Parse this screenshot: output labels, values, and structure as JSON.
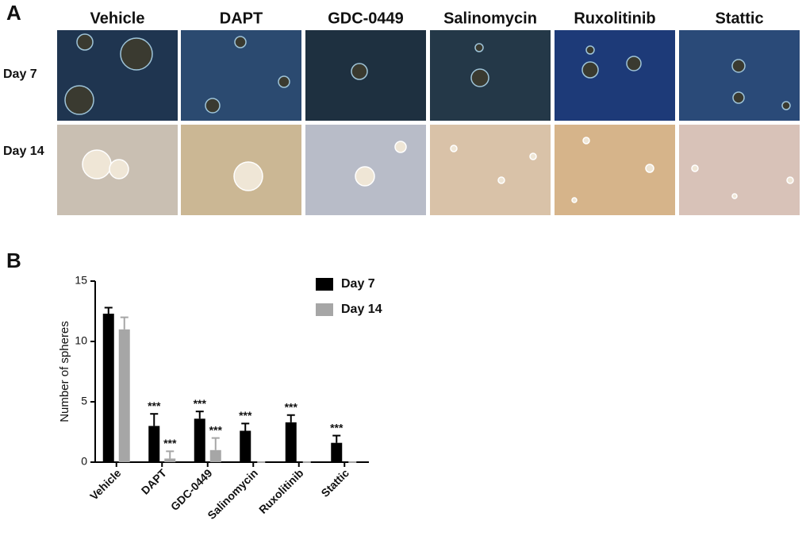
{
  "panel_a": {
    "label": "A",
    "columns": [
      "Vehicle",
      "DAPT",
      "GDC-0449",
      "Salinomycin",
      "Ruxolitinib",
      "Stattic"
    ],
    "rows": [
      "Day 7",
      "Day 14"
    ]
  },
  "chart_data": {
    "type": "bar",
    "panel_label": "B",
    "y_label": "Number of spheres",
    "categories": [
      "Vehicle",
      "DAPT",
      "GDC-0449",
      "Salinomycin",
      "Ruxolitinib",
      "Stattic"
    ],
    "series": [
      {
        "name": "Day 7",
        "color": "#000000",
        "values": [
          12.3,
          3.0,
          3.6,
          2.6,
          3.3,
          1.6
        ],
        "errors": [
          0.5,
          1.0,
          0.6,
          0.6,
          0.6,
          0.6
        ],
        "annotations": [
          null,
          "***",
          "***",
          "***",
          "***",
          "***"
        ]
      },
      {
        "name": "Day 14",
        "color": "#a6a6a6",
        "values": [
          11.0,
          0.3,
          1.0,
          0,
          0,
          0
        ],
        "errors": [
          1.0,
          0.6,
          1.0,
          0,
          0,
          0
        ],
        "annotations": [
          null,
          "***",
          "***",
          null,
          null,
          null
        ]
      }
    ],
    "ylim": [
      0,
      15
    ],
    "yticks": [
      0,
      5,
      10,
      15
    ],
    "legend": "top-right"
  }
}
